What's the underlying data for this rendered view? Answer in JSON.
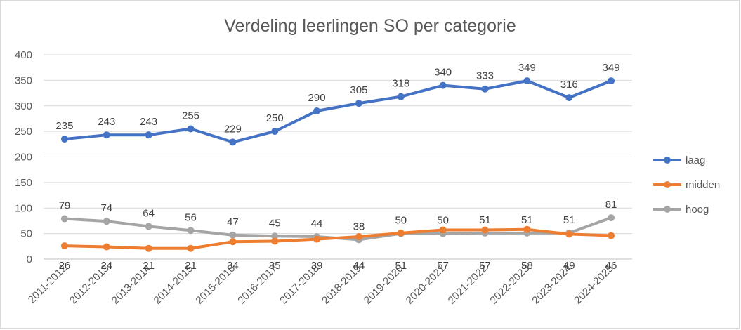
{
  "chart_data": {
    "type": "line",
    "title": "Verdeling leerlingen SO per categorie",
    "xlabel": "",
    "ylabel": "",
    "ylim": [
      0,
      400
    ],
    "yticks": [
      0,
      50,
      100,
      150,
      200,
      250,
      300,
      350,
      400
    ],
    "grid": true,
    "legend_position": "right",
    "categories": [
      "2011-2012",
      "2012-2013",
      "2013-2014",
      "2014-2015",
      "2015-2016",
      "2016-2017",
      "2017-2018",
      "2018-2019",
      "2019-2020",
      "2020-2021",
      "2021-2022",
      "2022-2023",
      "2023-2024",
      "2024-2025"
    ],
    "series": [
      {
        "name": "laag",
        "color": "#4472C4",
        "labels_position": "above",
        "values": [
          235,
          243,
          243,
          255,
          229,
          250,
          290,
          305,
          318,
          340,
          333,
          349,
          316,
          349
        ]
      },
      {
        "name": "midden",
        "color": "#ED7D31",
        "labels_position": "below",
        "values": [
          26,
          24,
          21,
          21,
          34,
          35,
          39,
          44,
          51,
          57,
          57,
          58,
          49,
          46
        ]
      },
      {
        "name": "hoog",
        "color": "#A5A5A5",
        "labels_position": "above",
        "values": [
          79,
          74,
          64,
          56,
          47,
          45,
          44,
          38,
          50,
          50,
          51,
          51,
          51,
          81
        ]
      }
    ]
  }
}
